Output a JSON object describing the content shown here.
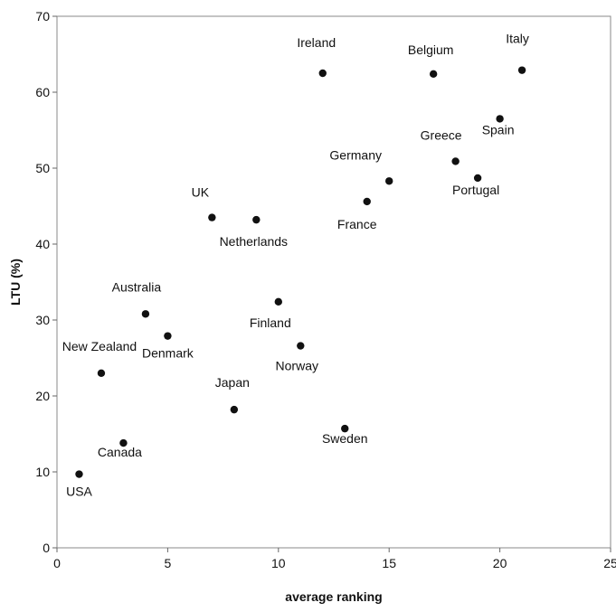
{
  "chart_data": {
    "type": "scatter",
    "title": "",
    "xlabel": "average ranking",
    "ylabel": "LTU (%)",
    "xlim": [
      0,
      25
    ],
    "ylim": [
      0,
      70
    ],
    "x_ticks": [
      "0",
      "5",
      "10",
      "15",
      "20",
      "25"
    ],
    "y_ticks": [
      "0",
      "10",
      "20",
      "30",
      "40",
      "50",
      "60",
      "70"
    ],
    "grid": false,
    "legend": "none",
    "marker_color": "#111111",
    "points": [
      {
        "label": "USA",
        "x": 1,
        "y": 9.7
      },
      {
        "label": "New Zealand",
        "x": 2,
        "y": 23
      },
      {
        "label": "Canada",
        "x": 3,
        "y": 13.8
      },
      {
        "label": "Australia",
        "x": 4,
        "y": 30.8
      },
      {
        "label": "Denmark",
        "x": 5,
        "y": 27.9
      },
      {
        "label": "UK",
        "x": 7,
        "y": 43.5
      },
      {
        "label": "Japan",
        "x": 8,
        "y": 18.2
      },
      {
        "label": "Netherlands",
        "x": 9,
        "y": 43.2
      },
      {
        "label": "Finland",
        "x": 10,
        "y": 32.4
      },
      {
        "label": "Norway",
        "x": 11,
        "y": 26.6
      },
      {
        "label": "Ireland",
        "x": 12,
        "y": 62.5
      },
      {
        "label": "Sweden",
        "x": 13,
        "y": 15.7
      },
      {
        "label": "France",
        "x": 14,
        "y": 45.6
      },
      {
        "label": "Germany",
        "x": 15,
        "y": 48.3
      },
      {
        "label": "Belgium",
        "x": 17,
        "y": 62.4
      },
      {
        "label": "Greece",
        "x": 18,
        "y": 50.9
      },
      {
        "label": "Portugal",
        "x": 19,
        "y": 48.7
      },
      {
        "label": "Spain",
        "x": 20,
        "y": 56.5
      },
      {
        "label": "Italy",
        "x": 21,
        "y": 62.9
      }
    ]
  }
}
